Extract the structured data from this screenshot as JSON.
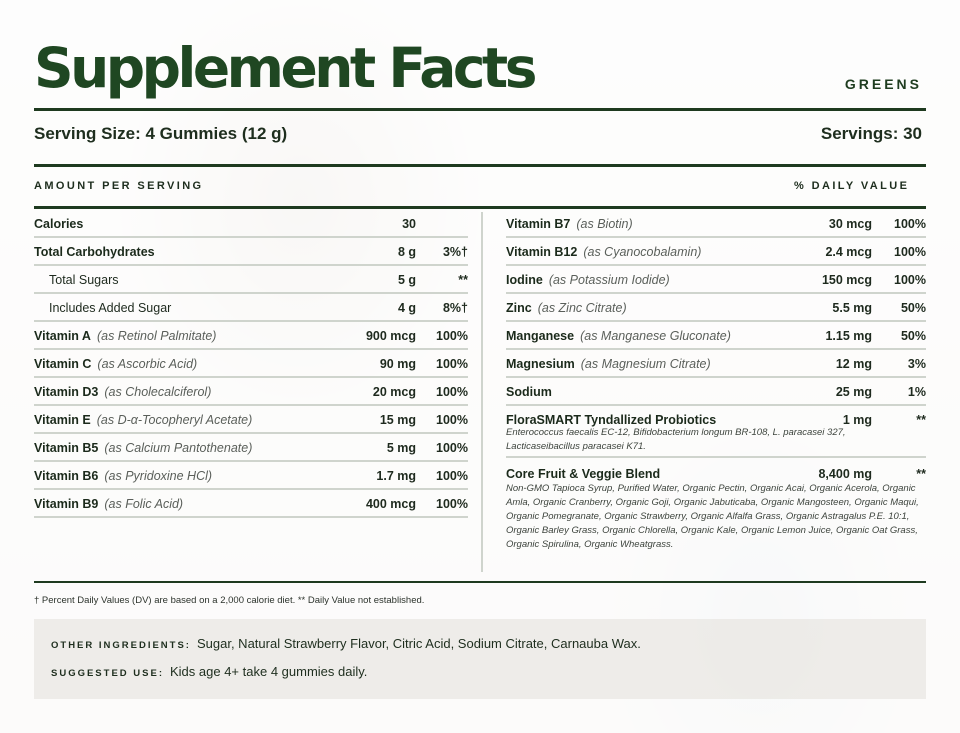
{
  "header": {
    "title": "Supplement Facts",
    "product": "GREENS"
  },
  "serving": {
    "size": "Serving Size: 4 Gummies (12 g)",
    "servings": "Servings: 30"
  },
  "columns": {
    "amount": "AMOUNT PER SERVING",
    "dv": "% DAILY VALUE"
  },
  "left_rows": [
    {
      "name": "Calories",
      "source": "",
      "amount": "30",
      "dv": "",
      "sub": false
    },
    {
      "name": "Total Carbohydrates",
      "source": "",
      "amount": "8 g",
      "dv": "3%†",
      "sub": false
    },
    {
      "name": "Total Sugars",
      "source": "",
      "amount": "5 g",
      "dv": "**",
      "sub": true
    },
    {
      "name": "Includes Added Sugar",
      "source": "",
      "amount": "4 g",
      "dv": "8%†",
      "sub": true
    },
    {
      "name": "Vitamin A",
      "source": "(as Retinol Palmitate)",
      "amount": "900 mcg",
      "dv": "100%",
      "sub": false
    },
    {
      "name": "Vitamin C",
      "source": "(as Ascorbic Acid)",
      "amount": "90 mg",
      "dv": "100%",
      "sub": false
    },
    {
      "name": "Vitamin D3",
      "source": "(as Cholecalciferol)",
      "amount": "20 mcg",
      "dv": "100%",
      "sub": false
    },
    {
      "name": "Vitamin E",
      "source": "(as D-α-Tocopheryl Acetate)",
      "amount": "15 mg",
      "dv": "100%",
      "sub": false
    },
    {
      "name": "Vitamin B5",
      "source": "(as Calcium Pantothenate)",
      "amount": "5 mg",
      "dv": "100%",
      "sub": false
    },
    {
      "name": "Vitamin B6",
      "source": "(as Pyridoxine HCl)",
      "amount": "1.7 mg",
      "dv": "100%",
      "sub": false
    },
    {
      "name": "Vitamin B9",
      "source": "(as Folic Acid)",
      "amount": "400 mcg",
      "dv": "100%",
      "sub": false
    }
  ],
  "right_rows": [
    {
      "name": "Vitamin B7",
      "source": "(as Biotin)",
      "amount": "30 mcg",
      "dv": "100%"
    },
    {
      "name": "Vitamin B12",
      "source": "(as Cyanocobalamin)",
      "amount": "2.4 mcg",
      "dv": "100%"
    },
    {
      "name": "Iodine",
      "source": "(as Potassium Iodide)",
      "amount": "150 mcg",
      "dv": "100%"
    },
    {
      "name": "Zinc",
      "source": "(as Zinc Citrate)",
      "amount": "5.5 mg",
      "dv": "50%"
    },
    {
      "name": "Manganese",
      "source": "(as Manganese Gluconate)",
      "amount": "1.15 mg",
      "dv": "50%"
    },
    {
      "name": "Magnesium",
      "source": "(as Magnesium Citrate)",
      "amount": "12 mg",
      "dv": "3%"
    },
    {
      "name": "Sodium",
      "source": "",
      "amount": "25 mg",
      "dv": "1%"
    }
  ],
  "probiotics": {
    "name": "FloraSMART Tyndallized Probiotics",
    "amount": "1 mg",
    "dv": "**",
    "note": "Enterococcus faecalis EC-12, Bifidobacterium longum BR-108, L. paracasei 327, Lacticaseibacillus paracasei K71."
  },
  "blend": {
    "name": "Core Fruit & Veggie Blend",
    "amount": "8,400 mg",
    "dv": "**",
    "note": "Non-GMO Tapioca Syrup, Purified Water, Organic Pectin, Organic Acai, Organic Acerola, Organic Amla, Organic Cranberry, Organic Goji, Organic Jabuticaba, Organic Mangosteen, Organic Maqui, Organic Pomegranate, Organic Strawberry, Organic Alfalfa Grass, Organic Astragalus P.E. 10:1, Organic Barley Grass, Organic Chlorella, Organic Kale, Organic Lemon Juice, Organic Oat Grass, Organic Spirulina, Organic Wheatgrass."
  },
  "footnote": "† Percent Daily Values (DV) are based on a 2,000 calorie diet. ** Daily Value not established.",
  "other": {
    "label": "OTHER INGREDIENTS:",
    "text": "Sugar, Natural Strawberry Flavor, Citric Acid, Sodium Citrate, Carnauba Wax."
  },
  "use": {
    "label": "SUGGESTED USE:",
    "text": "Kids age 4+ take 4 gummies daily."
  },
  "colors": {
    "accent": "#1f4722",
    "rule": "#1e3a1f",
    "divider": "#cfd4cd"
  }
}
